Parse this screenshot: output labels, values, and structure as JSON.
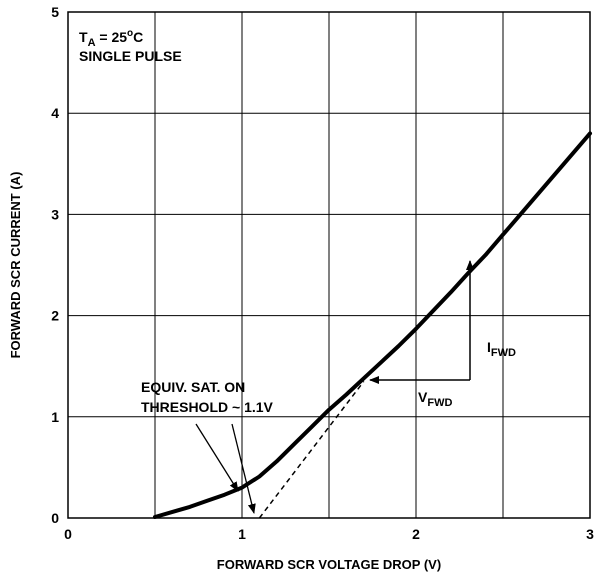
{
  "chart_data": {
    "type": "line",
    "xlabel": "FORWARD SCR VOLTAGE DROP (V)",
    "ylabel": "FORWARD SCR CURRENT (A)",
    "xlim": [
      0,
      3
    ],
    "ylim": [
      0,
      5
    ],
    "x_ticks": [
      "0",
      "1",
      "2",
      "3"
    ],
    "y_ticks": [
      "0",
      "1",
      "2",
      "3",
      "4",
      "5"
    ],
    "grid": true,
    "series": [
      {
        "style": "solid",
        "x": [
          0.5,
          0.6,
          0.7,
          0.8,
          0.9,
          1.0,
          1.1,
          1.2,
          1.3,
          1.4,
          1.5,
          1.6,
          1.7,
          1.8,
          1.9,
          2.0,
          2.1,
          2.2,
          2.3,
          2.4,
          2.5,
          2.6,
          2.7,
          2.8,
          2.9,
          3.0
        ],
        "y": [
          0.01,
          0.06,
          0.11,
          0.17,
          0.23,
          0.3,
          0.41,
          0.56,
          0.73,
          0.9,
          1.07,
          1.22,
          1.38,
          1.54,
          1.7,
          1.87,
          2.05,
          2.23,
          2.42,
          2.6,
          2.8,
          3.0,
          3.2,
          3.4,
          3.6,
          3.8
        ]
      },
      {
        "style": "dashed",
        "x": [
          1.1,
          1.7
        ],
        "y": [
          0.0,
          1.35
        ]
      }
    ],
    "annotations": {
      "conditions": {
        "t_main": "T",
        "t_sub": "A",
        "t_rest": " = 25",
        "t_sup": "o",
        "t_unit": "C",
        "line2": "SINGLE PULSE"
      },
      "threshold": {
        "line1": "EQUIV. SAT. ON",
        "line2": "THRESHOLD ~ 1.1V"
      },
      "ifwd": {
        "main": "I",
        "sub": "FWD"
      },
      "vfwd": {
        "main": "V",
        "sub": "FWD"
      }
    }
  }
}
